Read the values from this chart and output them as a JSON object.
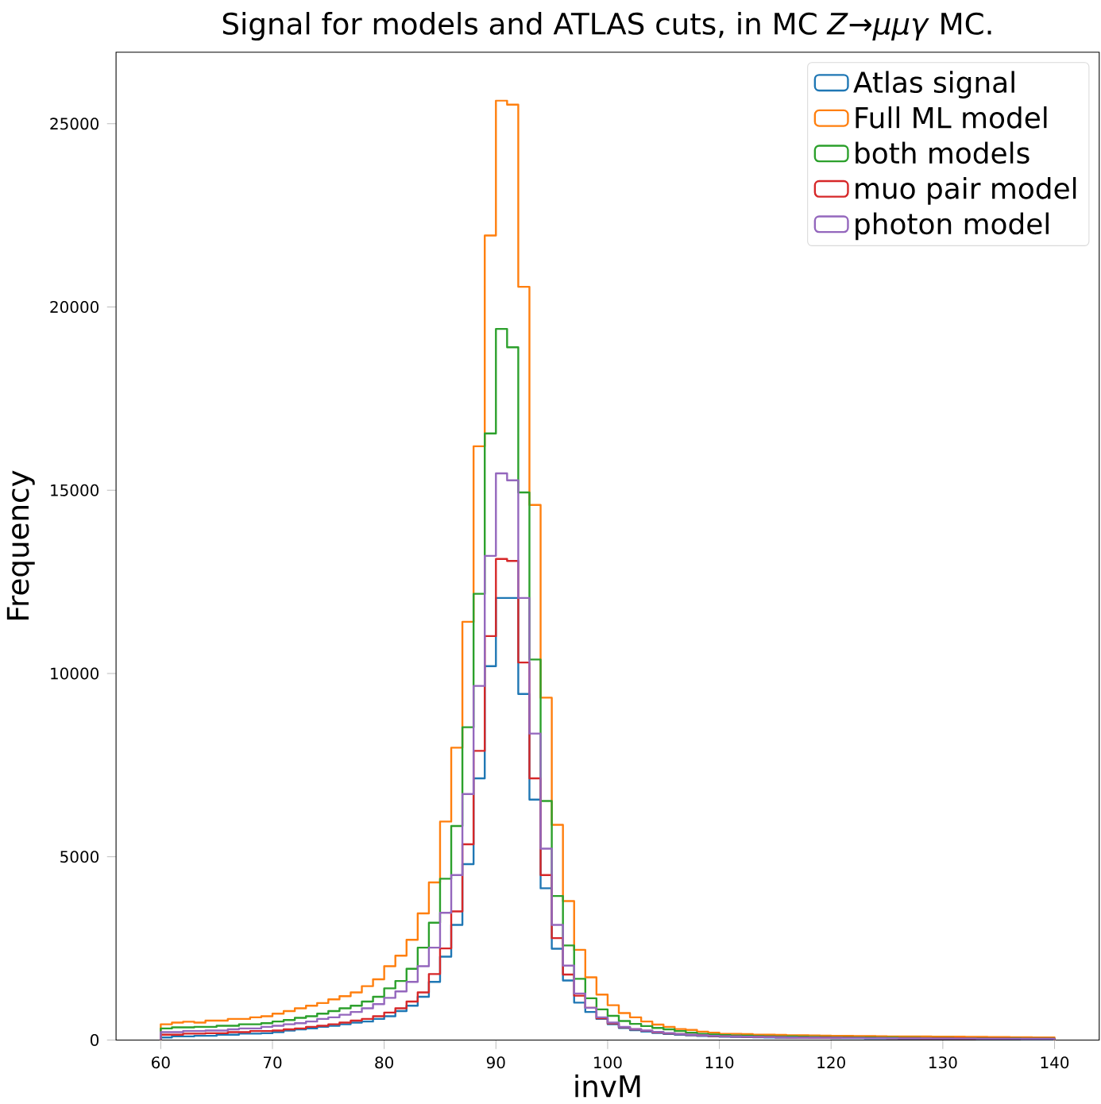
{
  "chart_data": {
    "type": "histogram",
    "title": "Signal for models and ATLAS cuts, in MC *Z*→*μμγ* MC.",
    "xlabel": "invM",
    "ylabel": "Frequency",
    "bins": [
      60,
      61,
      62,
      63,
      64,
      65,
      66,
      67,
      68,
      69,
      70,
      71,
      72,
      73,
      74,
      75,
      76,
      77,
      78,
      79,
      80,
      81,
      82,
      83,
      84,
      85,
      86,
      87,
      88,
      89,
      90,
      91,
      92,
      93,
      94,
      95,
      96,
      97,
      98,
      99,
      100,
      101,
      102,
      103,
      104,
      105,
      106,
      107,
      108,
      109,
      110,
      111,
      112,
      113,
      114,
      115,
      116,
      117,
      118,
      119,
      120,
      121,
      122,
      123,
      124,
      125,
      126,
      127,
      128,
      129,
      130,
      131,
      132,
      133,
      134,
      135,
      136,
      137,
      138,
      139,
      140
    ],
    "series": [
      {
        "name": "Atlas signal",
        "color": "#1f77b4",
        "values": [
          70,
          100,
          100,
          115,
          115,
          145,
          145,
          175,
          175,
          185,
          215,
          260,
          290,
          315,
          360,
          390,
          430,
          475,
          505,
          575,
          650,
          790,
          935,
          1180,
          1585,
          2275,
          3140,
          4800,
          7140,
          10200,
          12060,
          12060,
          9440,
          6560,
          4140,
          2490,
          1625,
          1020,
          765,
          575,
          430,
          330,
          270,
          230,
          195,
          165,
          145,
          125,
          110,
          100,
          90,
          85,
          80,
          75,
          70,
          65,
          60,
          60,
          55,
          55,
          50,
          50,
          50,
          45,
          45,
          45,
          40,
          40,
          40,
          35,
          35,
          35,
          35,
          30,
          30,
          30,
          30,
          25,
          25,
          25
        ]
      },
      {
        "name": "Full ML model",
        "color": "#ff7f0e",
        "values": [
          430,
          475,
          500,
          475,
          530,
          530,
          575,
          575,
          620,
          650,
          720,
          790,
          865,
          935,
          1010,
          1110,
          1195,
          1300,
          1470,
          1655,
          2015,
          2300,
          2735,
          3455,
          4300,
          5960,
          7975,
          11410,
          16200,
          21950,
          25630,
          25520,
          20550,
          14600,
          9340,
          5870,
          3790,
          2460,
          1710,
          1240,
          950,
          735,
          620,
          505,
          420,
          360,
          300,
          275,
          230,
          200,
          170,
          170,
          160,
          145,
          145,
          140,
          130,
          130,
          125,
          120,
          115,
          115,
          110,
          110,
          105,
          100,
          100,
          95,
          95,
          90,
          90,
          90,
          85,
          85,
          80,
          80,
          75,
          75,
          70,
          70
        ]
      },
      {
        "name": "both models",
        "color": "#2ca02c",
        "values": [
          315,
          345,
          345,
          360,
          360,
          390,
          390,
          430,
          430,
          460,
          505,
          545,
          605,
          650,
          720,
          790,
          865,
          935,
          1050,
          1180,
          1410,
          1610,
          1945,
          2520,
          3200,
          4400,
          5840,
          8535,
          12175,
          16550,
          19400,
          18900,
          14940,
          10380,
          6520,
          3930,
          2580,
          1670,
          1140,
          835,
          660,
          520,
          440,
          380,
          330,
          290,
          245,
          200,
          170,
          150,
          135,
          125,
          120,
          110,
          105,
          100,
          95,
          90,
          85,
          80,
          75,
          75,
          70,
          70,
          65,
          65,
          60,
          60,
          55,
          55,
          55,
          50,
          50,
          50,
          45,
          45,
          45,
          40,
          40,
          40
        ]
      },
      {
        "name": "muo pair model",
        "color": "#d62728",
        "values": [
          145,
          145,
          175,
          175,
          185,
          185,
          215,
          215,
          245,
          245,
          260,
          290,
          315,
          360,
          390,
          430,
          475,
          530,
          575,
          650,
          750,
          865,
          1050,
          1300,
          1800,
          2500,
          3510,
          5340,
          7890,
          11020,
          13125,
          13070,
          10300,
          7140,
          4500,
          2780,
          1785,
          1210,
          880,
          595,
          455,
          350,
          290,
          250,
          210,
          180,
          160,
          140,
          125,
          110,
          100,
          95,
          90,
          85,
          80,
          75,
          70,
          70,
          65,
          65,
          60,
          60,
          55,
          55,
          55,
          50,
          50,
          50,
          45,
          45,
          45,
          45,
          40,
          40,
          40,
          40,
          35,
          35,
          35,
          35
        ]
      },
      {
        "name": "photon model",
        "color": "#9467bd",
        "values": [
          215,
          215,
          245,
          245,
          260,
          260,
          290,
          315,
          315,
          360,
          390,
          430,
          460,
          505,
          575,
          620,
          690,
          765,
          865,
          980,
          1150,
          1325,
          1585,
          2015,
          2520,
          3470,
          4500,
          6710,
          9660,
          13210,
          15460,
          15270,
          12060,
          8360,
          5220,
          3140,
          2030,
          1270,
          880,
          620,
          475,
          360,
          300,
          260,
          220,
          190,
          165,
          145,
          130,
          115,
          105,
          95,
          90,
          85,
          80,
          75,
          70,
          65,
          65,
          60,
          60,
          55,
          55,
          50,
          50,
          50,
          45,
          45,
          45,
          40,
          40,
          40,
          40,
          35,
          35,
          35,
          35,
          30,
          30,
          30
        ]
      }
    ],
    "xlim": [
      56,
      144
    ],
    "ylim": [
      0,
      26950
    ],
    "xticks": [
      60,
      70,
      80,
      90,
      100,
      110,
      120,
      130,
      140
    ],
    "yticks": [
      0,
      5000,
      10000,
      15000,
      20000,
      25000
    ],
    "legend": "top right"
  }
}
